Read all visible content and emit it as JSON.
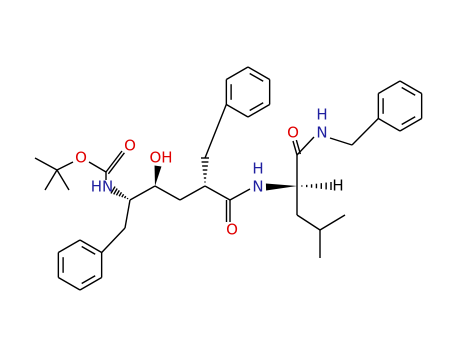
{
  "atoms": [
    {
      "label": "O"
    },
    {
      "label": "O"
    },
    {
      "label": "HN"
    },
    {
      "label": "OH"
    },
    {
      "label": "O"
    },
    {
      "label": "H"
    },
    {
      "label": "N"
    },
    {
      "label": "O"
    },
    {
      "label": "N"
    },
    {
      "label": "H"
    },
    {
      "label": "H"
    }
  ]
}
